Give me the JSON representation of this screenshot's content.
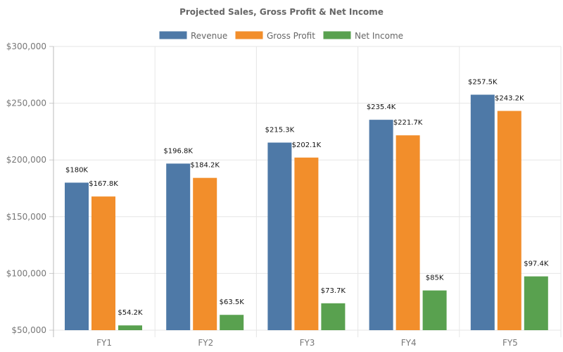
{
  "chart_data": {
    "type": "bar",
    "title": "Projected Sales, Gross Profit & Net Income",
    "categories": [
      "FY1",
      "FY2",
      "FY3",
      "FY4",
      "FY5"
    ],
    "series": [
      {
        "name": "Revenue",
        "color": "#4e79a7",
        "values": [
          180000,
          196800,
          215300,
          235400,
          257500
        ],
        "labels": [
          "$180K",
          "$196.8K",
          "$215.3K",
          "$235.4K",
          "$257.5K"
        ]
      },
      {
        "name": "Gross Profit",
        "color": "#f28e2b",
        "values": [
          167800,
          184200,
          202100,
          221700,
          243200
        ],
        "labels": [
          "$167.8K",
          "$184.2K",
          "$202.1K",
          "$221.7K",
          "$243.2K"
        ]
      },
      {
        "name": "Net Income",
        "color": "#59a14f",
        "values": [
          54200,
          63500,
          73700,
          85000,
          97400
        ],
        "labels": [
          "$54.2K",
          "$63.5K",
          "$73.7K",
          "$85K",
          "$97.4K"
        ]
      }
    ],
    "ylim": [
      50000,
      300000
    ],
    "yticks": [
      50000,
      100000,
      150000,
      200000,
      250000,
      300000
    ],
    "ytick_labels": [
      "$50,000",
      "$100,000",
      "$150,000",
      "$200,000",
      "$250,000",
      "$300,000"
    ],
    "grid": true,
    "legend_position": "top"
  }
}
